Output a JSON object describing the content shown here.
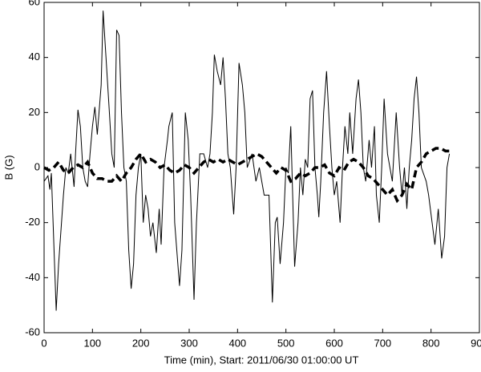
{
  "chart_data": {
    "type": "line",
    "x_label": "Time (min), Start: 2011/06/30 01:00:00 UT",
    "y_label": "B (G)",
    "xlim": [
      0,
      900
    ],
    "xticks": [
      0,
      100,
      200,
      300,
      400,
      500,
      600,
      700,
      800,
      900
    ],
    "ylim": [
      -60,
      60
    ],
    "yticks": [
      -60,
      -40,
      -20,
      0,
      20,
      40,
      60
    ],
    "series": [
      {
        "color": "#000000",
        "style": "solid",
        "x": [
          0,
          8,
          12,
          15,
          25,
          30,
          40,
          45,
          50,
          55,
          62,
          65,
          70,
          75,
          80,
          85,
          90,
          95,
          100,
          105,
          110,
          118,
          122,
          128,
          135,
          140,
          145,
          150,
          155,
          160,
          165,
          170,
          175,
          180,
          185,
          190,
          195,
          200,
          205,
          210,
          215,
          220,
          225,
          232,
          238,
          242,
          248,
          255,
          258,
          265,
          270,
          280,
          285,
          292,
          298,
          303,
          310,
          315,
          322,
          330,
          338,
          343,
          348,
          352,
          358,
          365,
          370,
          375,
          380,
          385,
          392,
          397,
          403,
          410,
          415,
          420,
          430,
          438,
          445,
          455,
          465,
          472,
          478,
          482,
          488,
          495,
          500,
          505,
          510,
          518,
          525,
          530,
          535,
          540,
          545,
          550,
          555,
          560,
          565,
          568,
          572,
          578,
          584,
          590,
          595,
          600,
          605,
          612,
          617,
          622,
          628,
          632,
          638,
          645,
          650,
          655,
          660,
          665,
          672,
          677,
          683,
          687,
          693,
          698,
          703,
          710,
          715,
          720,
          728,
          735,
          740,
          745,
          750,
          755,
          760,
          765,
          770,
          775,
          780,
          790,
          795,
          808,
          815,
          822,
          828,
          833,
          838
        ],
        "values": [
          -5,
          -3,
          -8,
          -2,
          -52,
          -35,
          -10,
          0,
          -2,
          5,
          -7,
          5,
          21,
          15,
          0,
          -5,
          -7,
          5,
          15,
          22,
          12,
          30,
          57,
          40,
          20,
          5,
          0,
          50,
          48,
          20,
          0,
          -5,
          -30,
          -44,
          -35,
          -10,
          0,
          5,
          -20,
          -10,
          -15,
          -25,
          -20,
          -31,
          -15,
          -28,
          0,
          10,
          15,
          20,
          -20,
          -43,
          -30,
          20,
          10,
          -10,
          -48,
          -20,
          5,
          5,
          0,
          5,
          20,
          41,
          35,
          30,
          40,
          25,
          5,
          0,
          -17,
          0,
          38,
          30,
          20,
          0,
          5,
          -5,
          0,
          -10,
          -10,
          -49,
          -20,
          -18,
          -35,
          -20,
          0,
          -2,
          15,
          -36,
          -20,
          0,
          -10,
          3,
          0,
          25,
          28,
          0,
          -10,
          -18,
          -5,
          20,
          35,
          15,
          0,
          -10,
          -5,
          -20,
          0,
          15,
          5,
          20,
          5,
          25,
          32,
          20,
          0,
          -5,
          10,
          0,
          15,
          -10,
          -20,
          0,
          25,
          5,
          0,
          -5,
          20,
          0,
          -10,
          0,
          -15,
          0,
          10,
          25,
          33,
          20,
          0,
          -5,
          -10,
          -28,
          -15,
          -33,
          -25,
          0,
          5
        ]
      },
      {
        "color": "#000000",
        "style": "dashed",
        "x": [
          0,
          10,
          20,
          30,
          40,
          50,
          60,
          70,
          80,
          90,
          100,
          110,
          120,
          130,
          140,
          150,
          160,
          170,
          180,
          190,
          200,
          210,
          220,
          230,
          240,
          250,
          260,
          270,
          280,
          290,
          300,
          310,
          320,
          330,
          340,
          350,
          360,
          370,
          380,
          390,
          400,
          410,
          420,
          430,
          440,
          450,
          460,
          470,
          480,
          490,
          500,
          510,
          520,
          530,
          540,
          550,
          560,
          570,
          580,
          590,
          600,
          610,
          620,
          630,
          640,
          650,
          660,
          670,
          680,
          690,
          700,
          710,
          720,
          730,
          740,
          750,
          760,
          770,
          780,
          790,
          800,
          810,
          820,
          830,
          840
        ],
        "values": [
          0,
          -1,
          0,
          2,
          -1,
          -2,
          0,
          1,
          0,
          2,
          -2,
          -4,
          -4,
          -5,
          -5,
          -3,
          -5,
          -2,
          0,
          3,
          5,
          2,
          3,
          2,
          0,
          1,
          -1,
          -2,
          -1,
          1,
          0,
          -2,
          0,
          2,
          3,
          2,
          3,
          2,
          3,
          2,
          1,
          2,
          3,
          4,
          5,
          4,
          2,
          0,
          -2,
          0,
          -1,
          -5,
          -4,
          -2,
          -3,
          -2,
          0,
          0,
          1,
          -2,
          -3,
          0,
          -1,
          2,
          3,
          2,
          0,
          -3,
          -4,
          -6,
          -8,
          -10,
          -8,
          -12,
          -10,
          -6,
          -8,
          0,
          2,
          5,
          6,
          7,
          7,
          6,
          6
        ]
      }
    ]
  }
}
